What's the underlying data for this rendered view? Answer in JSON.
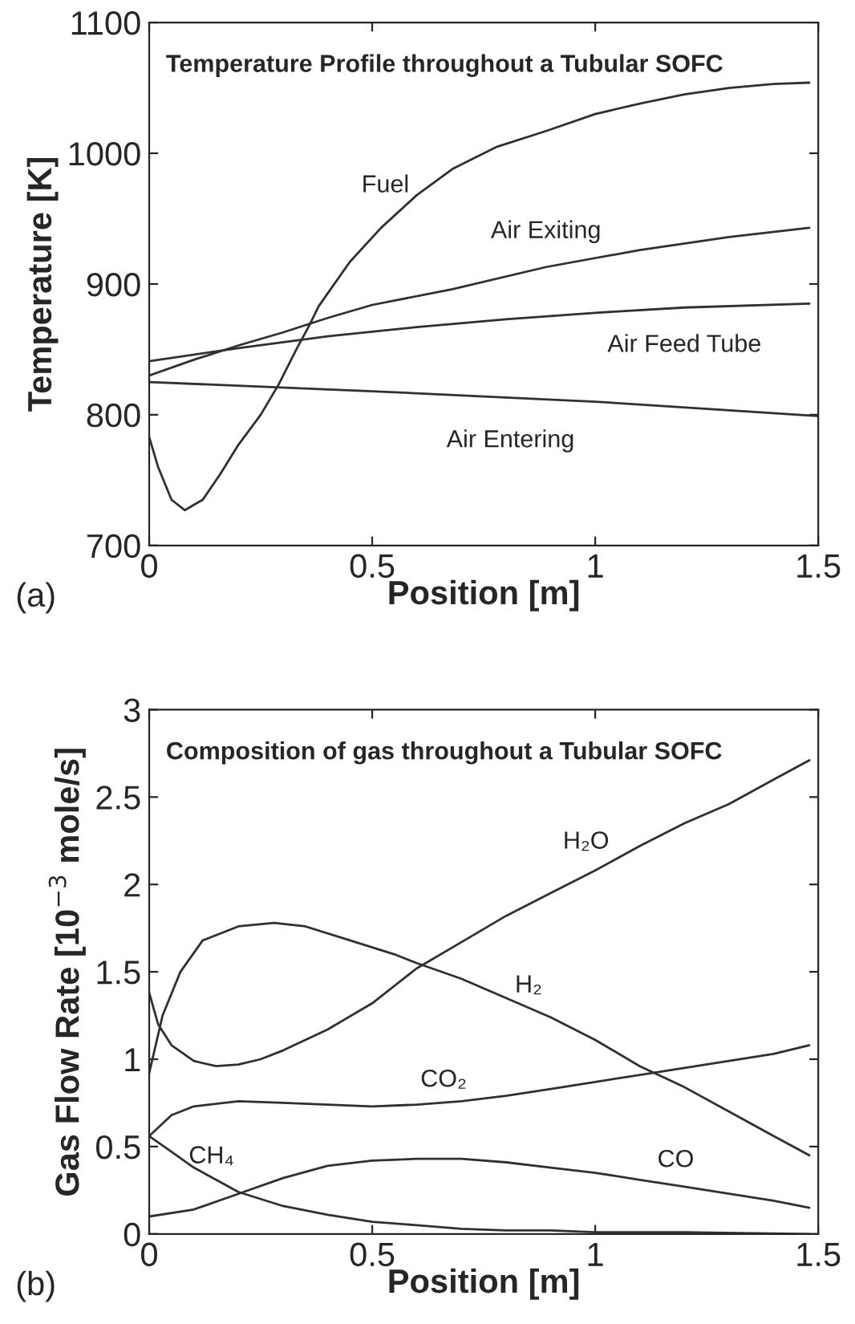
{
  "chart_data": [
    {
      "type": "line",
      "title": "Temperature Profile throughout a Tubular SOFC",
      "xlabel": "Position [m]",
      "ylabel": "Temperature [K]",
      "xlim": [
        0,
        1.5
      ],
      "ylim": [
        700,
        1100
      ],
      "xticks": [
        0,
        0.5,
        1,
        1.5
      ],
      "yticks": [
        700,
        800,
        900,
        1000,
        1100
      ],
      "series": [
        {
          "color": "#303030",
          "x": [
            0,
            0.02,
            0.05,
            0.08,
            0.12,
            0.16,
            0.2,
            0.25,
            0.29,
            0.33,
            0.36,
            0.38,
            0.45,
            0.52,
            0.6,
            0.68,
            0.78,
            0.89,
            1.0,
            1.1,
            1.2,
            1.3,
            1.4,
            1.48
          ],
          "values": [
            783,
            760,
            735,
            727,
            735,
            755,
            777,
            800,
            823,
            850,
            869,
            883,
            917,
            943,
            968,
            988,
            1005,
            1017,
            1030,
            1038,
            1045,
            1050,
            1053,
            1054
          ]
        },
        {
          "color": "#303030",
          "x": [
            0,
            0.1,
            0.2,
            0.3,
            0.4,
            0.5,
            0.68,
            0.89,
            1.1,
            1.3,
            1.48
          ],
          "values": [
            830,
            842,
            853,
            863,
            874,
            884,
            896,
            913,
            926,
            936,
            943
          ]
        },
        {
          "color": "#303030",
          "x": [
            0,
            0.2,
            0.4,
            0.6,
            0.8,
            1.0,
            1.2,
            1.48
          ],
          "values": [
            841,
            851,
            860,
            867,
            873,
            878,
            882,
            885
          ]
        },
        {
          "color": "#303030",
          "x": [
            0,
            0.5,
            1.0,
            1.5
          ],
          "values": [
            825,
            818,
            810,
            799
          ]
        }
      ],
      "annotations": [
        "Fuel",
        "Air Exiting",
        "Air Feed Tube",
        "Air Entering",
        "(a)"
      ]
    },
    {
      "type": "line",
      "title": "Composition of gas throughout a Tubular SOFC",
      "xlabel": "Position [m]",
      "ylabel": "Gas Flow Rate [10$^{−3}$ mole/s]",
      "xlim": [
        0,
        1.5
      ],
      "ylim": [
        0,
        3
      ],
      "xticks": [
        0,
        0.5,
        1,
        1.5
      ],
      "yticks": [
        0,
        0.5,
        1,
        1.5,
        2,
        2.5,
        3
      ],
      "series": [
        {
          "color": "#303030",
          "x": [
            0,
            0.02,
            0.05,
            0.1,
            0.15,
            0.2,
            0.25,
            0.3,
            0.4,
            0.5,
            0.6,
            0.7,
            0.8,
            0.9,
            1.0,
            1.1,
            1.2,
            1.3,
            1.4,
            1.48
          ],
          "values": [
            1.38,
            1.2,
            1.08,
            0.99,
            0.96,
            0.97,
            1.0,
            1.05,
            1.17,
            1.32,
            1.52,
            1.67,
            1.82,
            1.95,
            2.08,
            2.22,
            2.35,
            2.46,
            2.6,
            2.71
          ]
        },
        {
          "color": "#303030",
          "x": [
            0,
            0.03,
            0.07,
            0.12,
            0.2,
            0.28,
            0.35,
            0.45,
            0.55,
            0.6,
            0.7,
            0.8,
            0.9,
            1.0,
            1.1,
            1.2,
            1.3,
            1.4,
            1.48
          ],
          "values": [
            0.92,
            1.25,
            1.5,
            1.68,
            1.76,
            1.78,
            1.76,
            1.68,
            1.6,
            1.55,
            1.46,
            1.35,
            1.24,
            1.11,
            0.96,
            0.84,
            0.7,
            0.56,
            0.45
          ]
        },
        {
          "color": "#303030",
          "x": [
            0,
            0.05,
            0.1,
            0.2,
            0.3,
            0.4,
            0.5,
            0.6,
            0.7,
            0.8,
            0.9,
            1.0,
            1.1,
            1.2,
            1.3,
            1.4,
            1.48
          ],
          "values": [
            0.56,
            0.68,
            0.73,
            0.76,
            0.75,
            0.74,
            0.73,
            0.74,
            0.76,
            0.79,
            0.83,
            0.87,
            0.91,
            0.95,
            0.99,
            1.03,
            1.08
          ]
        },
        {
          "color": "#303030",
          "x": [
            0,
            0.05,
            0.1,
            0.15,
            0.2,
            0.3,
            0.4,
            0.5,
            0.6,
            0.7,
            0.8,
            0.9,
            1.0,
            1.2,
            1.48
          ],
          "values": [
            0.56,
            0.47,
            0.38,
            0.31,
            0.24,
            0.16,
            0.11,
            0.07,
            0.05,
            0.03,
            0.02,
            0.02,
            0.01,
            0.01,
            0.0
          ]
        },
        {
          "color": "#303030",
          "x": [
            0,
            0.1,
            0.2,
            0.3,
            0.4,
            0.5,
            0.6,
            0.7,
            0.8,
            0.9,
            1.0,
            1.1,
            1.2,
            1.3,
            1.4,
            1.48
          ],
          "values": [
            0.1,
            0.14,
            0.23,
            0.32,
            0.39,
            0.42,
            0.43,
            0.43,
            0.41,
            0.38,
            0.35,
            0.31,
            0.27,
            0.23,
            0.19,
            0.15
          ]
        }
      ],
      "annotations": [
        "H₂O",
        "H₂",
        "CO₂",
        "CH₄",
        "CO",
        "(b)"
      ]
    }
  ]
}
